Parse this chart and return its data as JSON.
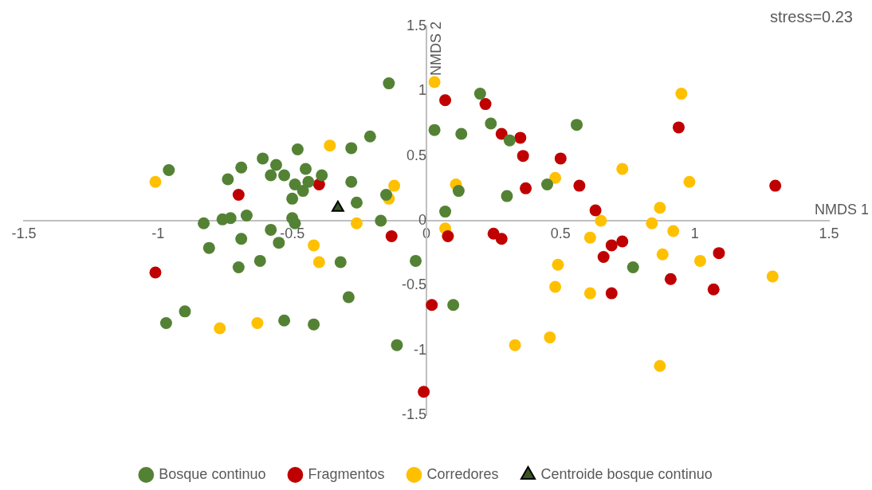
{
  "chart_data": {
    "type": "scatter",
    "xlabel": "NMDS 1",
    "ylabel": "NMDS 2",
    "annotations": [
      "stress=0.23"
    ],
    "xlim": [
      -1.5,
      1.5
    ],
    "xticks": [
      -1.5,
      -1,
      -0.5,
      0,
      0.5,
      1,
      1.5
    ],
    "ylim": [
      -1.5,
      1.5
    ],
    "yticks": [
      -1.5,
      -1,
      -0.5,
      0,
      0.5,
      1,
      1.5
    ],
    "grid": false,
    "legend": "bottom",
    "series": [
      {
        "name": "Bosque continuo",
        "color": "#548235",
        "marker": "circle",
        "x": [
          -0.14,
          -0.96,
          -0.74,
          -0.69,
          -0.61,
          -0.56,
          -0.58,
          -0.53,
          -0.48,
          -0.45,
          -0.39,
          -0.49,
          -0.46,
          -0.44,
          -0.5,
          -0.28,
          -0.21,
          -0.28,
          -0.26,
          -0.17,
          -0.83,
          -0.76,
          -0.73,
          -0.67,
          -0.58,
          -0.5,
          -0.49,
          -0.69,
          -0.81,
          -0.55,
          -0.62,
          -0.7,
          -0.32,
          -0.04,
          -0.29,
          -0.97,
          -0.9,
          -0.53,
          -0.42,
          -0.11,
          -0.15,
          0.03,
          0.2,
          0.13,
          0.24,
          0.31,
          0.56,
          0.12,
          0.3,
          0.45,
          0.07,
          0.77,
          0.1
        ],
        "values": [
          1.06,
          0.39,
          0.32,
          0.41,
          0.48,
          0.43,
          0.35,
          0.35,
          0.55,
          0.4,
          0.35,
          0.28,
          0.23,
          0.3,
          0.17,
          0.56,
          0.65,
          0.3,
          0.14,
          0,
          -0.02,
          0.01,
          0.02,
          0.04,
          -0.07,
          0.02,
          -0.02,
          -0.14,
          -0.21,
          -0.17,
          -0.31,
          -0.36,
          -0.32,
          -0.31,
          -0.59,
          -0.79,
          -0.7,
          -0.77,
          -0.8,
          -0.96,
          0.2,
          0.7,
          0.98,
          0.67,
          0.75,
          0.62,
          0.74,
          0.23,
          0.19,
          0.28,
          0.07,
          -0.36,
          -0.65
        ]
      },
      {
        "name": "Fragmentos",
        "color": "#c00000",
        "marker": "circle",
        "x": [
          -0.4,
          -0.7,
          -1.01,
          -0.13,
          0.07,
          0.22,
          0.28,
          0.35,
          0.36,
          0.5,
          0.37,
          0.57,
          0.94,
          1.3,
          0.63,
          0.08,
          0.25,
          0.28,
          0.66,
          0.69,
          0.73,
          1.09,
          0.91,
          1.07,
          0.69,
          0.02,
          -0.01
        ],
        "values": [
          0.28,
          0.2,
          -0.4,
          -0.12,
          0.93,
          0.9,
          0.67,
          0.64,
          0.5,
          0.48,
          0.25,
          0.27,
          0.72,
          0.27,
          0.08,
          -0.12,
          -0.1,
          -0.14,
          -0.28,
          -0.19,
          -0.16,
          -0.25,
          -0.45,
          -0.53,
          -0.56,
          -0.65,
          -1.32
        ]
      },
      {
        "name": "Corredores",
        "color": "#ffc000",
        "marker": "circle",
        "x": [
          -1.01,
          -0.36,
          -0.12,
          -0.14,
          -0.26,
          -0.42,
          -0.4,
          -0.77,
          -0.63,
          0.03,
          0.11,
          0.07,
          0.48,
          0.73,
          0.95,
          0.98,
          0.87,
          0.84,
          0.65,
          0.61,
          0.92,
          0.88,
          1.02,
          0.49,
          0.48,
          0.61,
          1.29,
          0.33,
          0.46,
          0.87
        ],
        "values": [
          0.3,
          0.58,
          0.27,
          0.17,
          -0.02,
          -0.19,
          -0.32,
          -0.83,
          -0.79,
          1.07,
          0.28,
          -0.06,
          0.33,
          0.4,
          0.98,
          0.3,
          0.1,
          -0.02,
          0,
          -0.13,
          -0.08,
          -0.26,
          -0.31,
          -0.34,
          -0.51,
          -0.56,
          -0.43,
          -0.96,
          -0.9,
          -1.12
        ]
      },
      {
        "name": "Centroide bosque continuo",
        "color": "#375623",
        "marker": "triangle",
        "x": [
          -0.33
        ],
        "values": [
          0.1
        ]
      }
    ]
  }
}
